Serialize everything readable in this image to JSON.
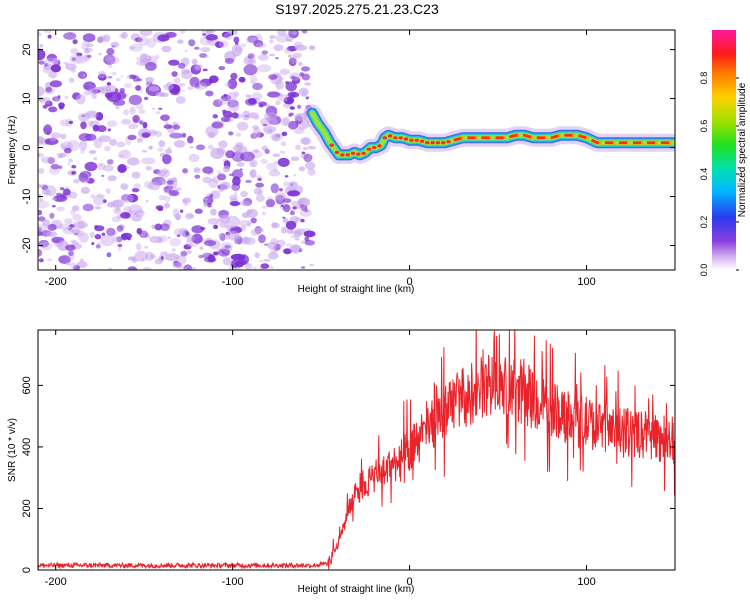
{
  "title": "S197.2025.275.21.23.C23",
  "chart_data": [
    {
      "type": "heatmap",
      "name": "spectrogram",
      "xlabel": "Height of straight line (km)",
      "ylabel": "Frequency (Hz)",
      "xlim": [
        -210,
        150
      ],
      "ylim": [
        -25,
        24
      ],
      "xticks": [
        -200,
        -100,
        0,
        100
      ],
      "xtick_labels": [
        "-200",
        "-100",
        "0",
        "100"
      ],
      "yticks": [
        -20,
        -10,
        0,
        10,
        20
      ],
      "ytick_labels": [
        "-20",
        "-10",
        "0",
        "10",
        "20"
      ],
      "noise_region_x": [
        -210,
        -55
      ],
      "signal_track": {
        "x": [
          -55,
          -52,
          -48,
          -45,
          -42,
          -40,
          -37,
          -34,
          -31,
          -28,
          -25,
          -22,
          -19,
          -16,
          -14,
          -12,
          -8,
          -4,
          0,
          5,
          10,
          15,
          20,
          25,
          30,
          40,
          50,
          55,
          60,
          65,
          70,
          75,
          80,
          85,
          90,
          95,
          100,
          103,
          106,
          110,
          120,
          130,
          140,
          150
        ],
        "freq": [
          7,
          5,
          3,
          1,
          -0.5,
          -1.5,
          -1.5,
          -1.5,
          -1,
          -1.5,
          -1,
          0,
          0,
          0.5,
          2,
          2.5,
          2,
          2,
          1.5,
          1.5,
          1,
          1,
          1,
          1.5,
          2,
          2,
          2,
          2,
          2.5,
          2.5,
          2,
          2,
          2,
          2.5,
          2.5,
          2.5,
          2,
          1.5,
          1,
          1,
          1,
          1,
          1,
          1
        ]
      },
      "colorbar": {
        "label": "Normalized spectral amplitude",
        "range": [
          0,
          1
        ],
        "ticks": [
          0.0,
          0.2,
          0.4,
          0.6,
          0.8
        ],
        "tick_labels": [
          "0.0",
          "0.2",
          "0.4",
          "0.6",
          "0.8"
        ]
      },
      "colors": {
        "noise": "#7b2fd4",
        "noise_light": "#c9a6ee",
        "track_outer": "#3a6cf0",
        "track_mid": "#22d3c8",
        "track_inner": "#9be23a",
        "track_core": "#ff2a1a",
        "track_core2": "#ff9a00"
      }
    },
    {
      "type": "line",
      "name": "snr",
      "xlabel": "Height of straight line (km)",
      "ylabel": "SNR (10 * v/v)",
      "xlim": [
        -210,
        150
      ],
      "ylim": [
        0,
        780
      ],
      "xticks": [
        -200,
        -100,
        0,
        100
      ],
      "xtick_labels": [
        "-200",
        "-100",
        "0",
        "100"
      ],
      "yticks": [
        0,
        200,
        400,
        600
      ],
      "ytick_labels": [
        "0",
        "200",
        "400",
        "600"
      ],
      "trend": {
        "x": [
          -210,
          -80,
          -55,
          -46,
          -44,
          -40,
          -35,
          -30,
          -20,
          -10,
          0,
          10,
          20,
          30,
          40,
          50,
          60,
          70,
          80,
          90,
          100,
          110,
          120,
          130,
          140,
          150
        ],
        "y": [
          15,
          15,
          15,
          20,
          40,
          90,
          180,
          260,
          300,
          340,
          390,
          450,
          520,
          560,
          590,
          590,
          580,
          560,
          520,
          500,
          480,
          460,
          450,
          440,
          430,
          420
        ]
      },
      "line_color": "#e8232a"
    }
  ]
}
